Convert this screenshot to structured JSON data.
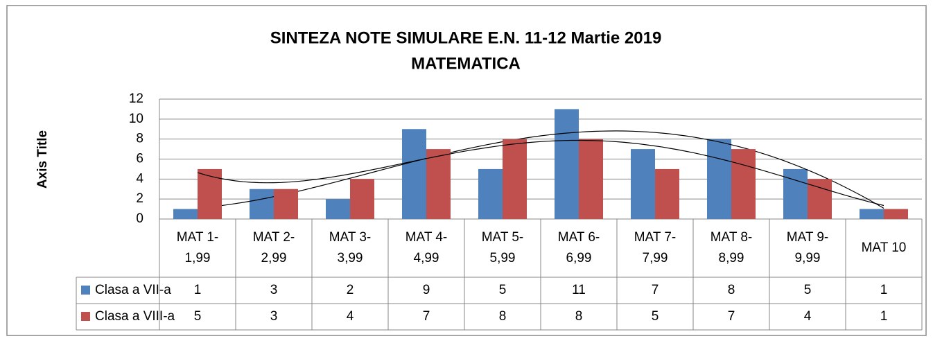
{
  "chart_data": {
    "type": "bar",
    "title": "SINTEZA NOTE SIMULARE E.N. 11-12 Martie 2019",
    "subtitle": "MATEMATICA",
    "y_label": "Axis Title",
    "categories": [
      "MAT 1-\n1,99",
      "MAT 2-\n2,99",
      "MAT 3-\n3,99",
      "MAT 4-\n4,99",
      "MAT 5-\n5,99",
      "MAT 6-\n6,99",
      "MAT 7-\n7,99",
      "MAT 8-\n8,99",
      "MAT 9-\n9,99",
      "MAT 10"
    ],
    "series": [
      {
        "name": "Clasa a VII-a",
        "color": "#4f81bd",
        "values": [
          1,
          3,
          2,
          9,
          5,
          11,
          7,
          8,
          5,
          1
        ]
      },
      {
        "name": "Clasa a VIII-a",
        "color": "#c0504d",
        "values": [
          5,
          3,
          4,
          7,
          8,
          8,
          5,
          7,
          4,
          1
        ]
      }
    ],
    "ylim": [
      0,
      12
    ],
    "yticks": [
      0,
      2,
      4,
      6,
      8,
      10,
      12
    ],
    "grid": true,
    "trendline": true
  }
}
